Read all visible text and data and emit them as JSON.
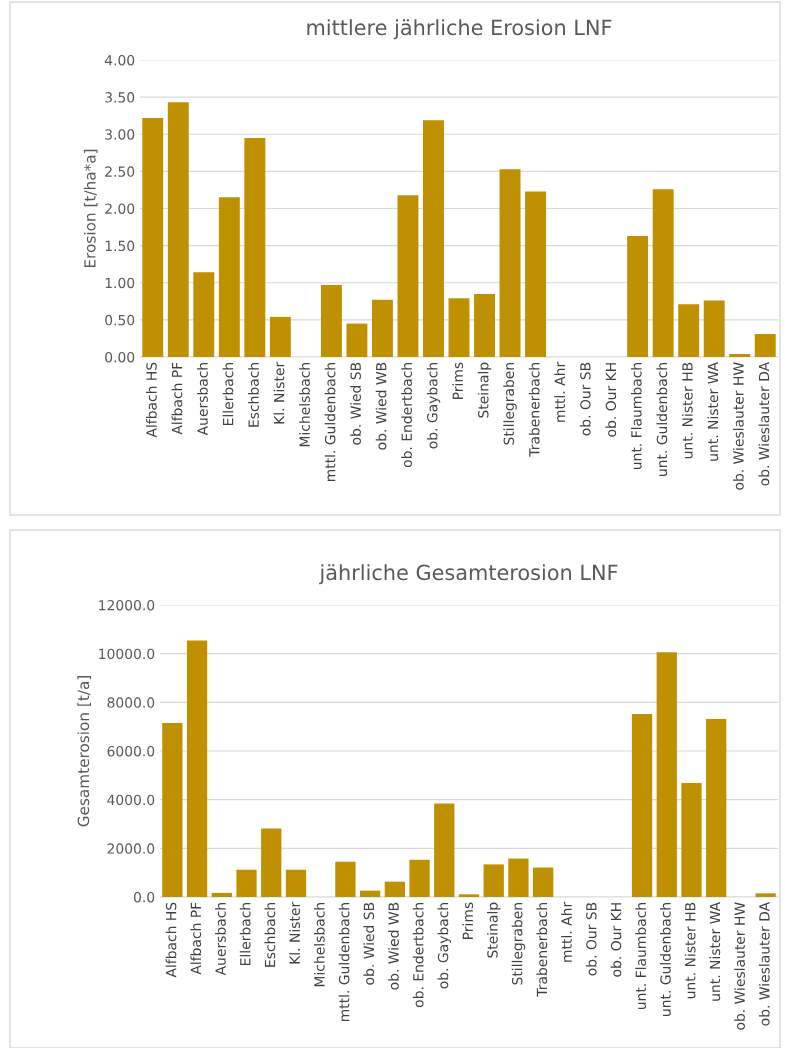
{
  "chart_data": [
    {
      "type": "bar",
      "title": "mittlere jährliche Erosion LNF",
      "ylabel": "Erosion [t/ha*a]",
      "categories": [
        "Alfbach HS",
        "Alfbach PF",
        "Auersbach",
        "Ellerbach",
        "Eschbach",
        "Kl. Nister",
        "Michelsbach",
        "mttl. Guldenbach",
        "ob. Wied SB",
        "ob. Wied WB",
        "ob. Endertbach",
        "ob. Gaybach",
        "Prims",
        "Steinalp",
        "Stillegraben",
        "Trabenerbach",
        "mttl. Ahr",
        "ob. Our SB",
        "ob. Our KH",
        "unt. Flaumbach",
        "unt. Guldenbach",
        "unt. Nister HB",
        "unt. Nister WA",
        "ob. Wieslauter HW",
        "ob. Wieslauter DA"
      ],
      "values": [
        3.22,
        3.43,
        1.14,
        2.15,
        2.95,
        0.54,
        null,
        0.97,
        0.45,
        0.77,
        2.18,
        3.19,
        0.79,
        0.85,
        2.53,
        2.23,
        null,
        null,
        null,
        1.63,
        2.26,
        0.71,
        0.76,
        0.04,
        0.31
      ],
      "color": "#bf9000",
      "ylim": [
        0,
        4
      ],
      "yticks": [
        {
          "value": 0,
          "label": "0.00"
        },
        {
          "value": 0.5,
          "label": "0.50"
        },
        {
          "value": 1,
          "label": "1.00"
        },
        {
          "value": 1.5,
          "label": "1.50"
        },
        {
          "value": 2,
          "label": "2.00"
        },
        {
          "value": 2.5,
          "label": "2.50"
        },
        {
          "value": 3,
          "label": "3.00"
        },
        {
          "value": 3.5,
          "label": "3.50"
        },
        {
          "value": 4,
          "label": "4.00"
        }
      ],
      "grid": "y"
    },
    {
      "type": "bar",
      "title": "jährliche Gesamterosion LNF",
      "ylabel": "Gesamterosion [t/a]",
      "categories": [
        "Alfbach HS",
        "Alfbach PF",
        "Auersbach",
        "Ellerbach",
        "Eschbach",
        "Kl. Nister",
        "Michelsbach",
        "mttl. Guldenbach",
        "ob. Wied SB",
        "ob. Wied WB",
        "ob. Endertbach",
        "ob. Gaybach",
        "Prims",
        "Steinalp",
        "Stillegraben",
        "Trabenerbach",
        "mttl. Ahr",
        "ob. Our SB",
        "ob. Our KH",
        "unt. Flaumbach",
        "unt. Guldenbach",
        "unt. Nister HB",
        "unt. Nister WA",
        "ob. Wieslauter HW",
        "ob. Wieslauter DA"
      ],
      "values": [
        7150,
        10540,
        170,
        1120,
        2810,
        1120,
        null,
        1450,
        260,
        630,
        1530,
        3840,
        110,
        1340,
        1580,
        1210,
        null,
        null,
        null,
        7520,
        10060,
        4690,
        7320,
        null,
        150
      ],
      "color": "#bf9000",
      "ylim": [
        0,
        12000
      ],
      "yticks": [
        {
          "value": 0,
          "label": "0.0"
        },
        {
          "value": 2000,
          "label": "2000.0"
        },
        {
          "value": 4000,
          "label": "4000.0"
        },
        {
          "value": 6000,
          "label": "6000.0"
        },
        {
          "value": 8000,
          "label": "8000.0"
        },
        {
          "value": 10000,
          "label": "10000.0"
        },
        {
          "value": 12000,
          "label": "12000.0"
        }
      ],
      "grid": "y"
    }
  ]
}
